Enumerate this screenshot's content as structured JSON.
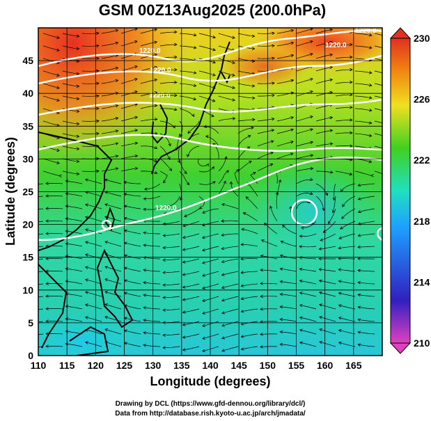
{
  "title": "GSM 00Z13Aug2025 (200.0hPa)",
  "xlabel": "Longitude (degrees)",
  "ylabel": "Latitude  (degrees)",
  "x_ticks": [
    "110",
    "115",
    "120",
    "125",
    "130",
    "135",
    "140",
    "145",
    "150",
    "155",
    "160",
    "165"
  ],
  "y_ticks": [
    "0",
    "5",
    "10",
    "15",
    "20",
    "25",
    "30",
    "35",
    "40",
    "45"
  ],
  "colorbar": {
    "labels": [
      "210",
      "214",
      "218",
      "222",
      "226",
      "230"
    ],
    "stops": [
      "#e040c0",
      "#3020c0",
      "#1ea0ff",
      "#20e0c0",
      "#40d020",
      "#f0e020",
      "#f08010",
      "#e03020"
    ]
  },
  "contour_labels": [
    "1220.0",
    "1220.0",
    "1220.0",
    "1220.0",
    "1220.0",
    "1220.0"
  ],
  "credits": {
    "line1": "Drawing by DCL (https://www.gfd-dennou.org/library/dcl/)",
    "line2": "Data from http://database.rish.kyoto-u.ac.jp/arch/jmadata/"
  },
  "chart_data": {
    "type": "heatmap",
    "title": "GSM 00Z13Aug2025 (200.0hPa)",
    "xlabel": "Longitude (degrees)",
    "ylabel": "Latitude  (degrees)",
    "xlim": [
      110,
      170
    ],
    "ylim": [
      0,
      50
    ],
    "color_range": [
      210,
      230
    ],
    "overlay": "streamlines with white contour lines",
    "grid": true
  }
}
